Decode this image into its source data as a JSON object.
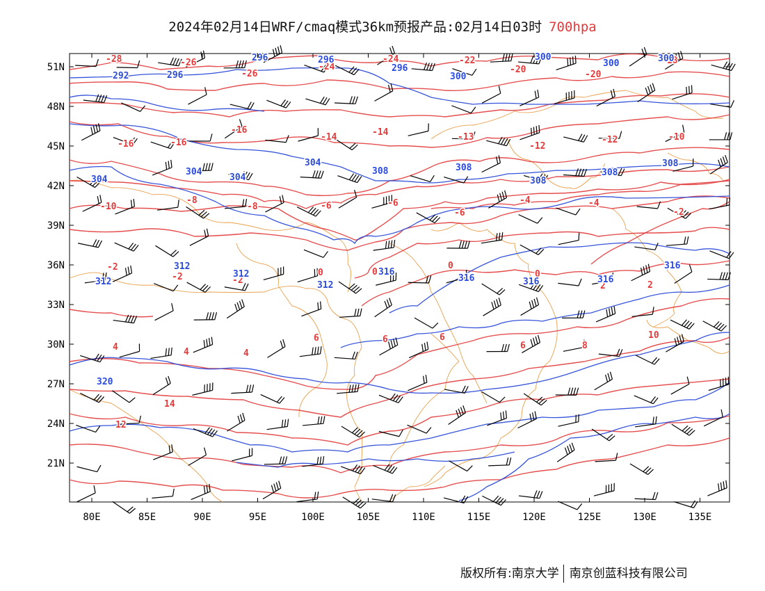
{
  "header": {
    "title": "2024年02月14日WRF/cmaq模式36km预报产品:02月14日03时",
    "level": "700hpa",
    "level_color": "#e23b3b"
  },
  "map": {
    "lon_ticks": [
      "80E",
      "85E",
      "90E",
      "95E",
      "100E",
      "105E",
      "110E",
      "115E",
      "120E",
      "125E",
      "130E",
      "135E"
    ],
    "lat_ticks": [
      "51N",
      "48N",
      "45N",
      "42N",
      "39N",
      "36N",
      "33N",
      "30N",
      "27N",
      "24N",
      "21N"
    ],
    "contours": {
      "temperature_color": "#e23b3b",
      "height_color": "#2b4bd8",
      "border_color": "#e8963a",
      "wind_color": "#000000",
      "temperature_labels": [
        "-28",
        "-26",
        "-26",
        "-24",
        "-24",
        "-22",
        "-20",
        "-20",
        "-18",
        "-16",
        "-16",
        "-16",
        "-14",
        "-14",
        "-13",
        "-12",
        "-12",
        "-10",
        "-10",
        "-8",
        "-8",
        "-6",
        "-6",
        "-6",
        "-4",
        "-4",
        "-2",
        "-2",
        "-2",
        "-2",
        "0",
        "0",
        "0",
        "0",
        "2",
        "2",
        "4",
        "4",
        "4",
        "6",
        "6",
        "6",
        "6",
        "8",
        "10",
        "12",
        "14"
      ],
      "height_labels": [
        "292",
        "296",
        "296",
        "296",
        "296",
        "300",
        "300",
        "300",
        "300",
        "304",
        "304",
        "304",
        "304",
        "308",
        "308",
        "308",
        "308",
        "308",
        "312",
        "312",
        "312",
        "312",
        "316",
        "316",
        "316",
        "316",
        "316",
        "320"
      ]
    }
  },
  "footer": {
    "copyright": "版权所有:南京大学",
    "company": "南京创蓝科技有限公司"
  }
}
